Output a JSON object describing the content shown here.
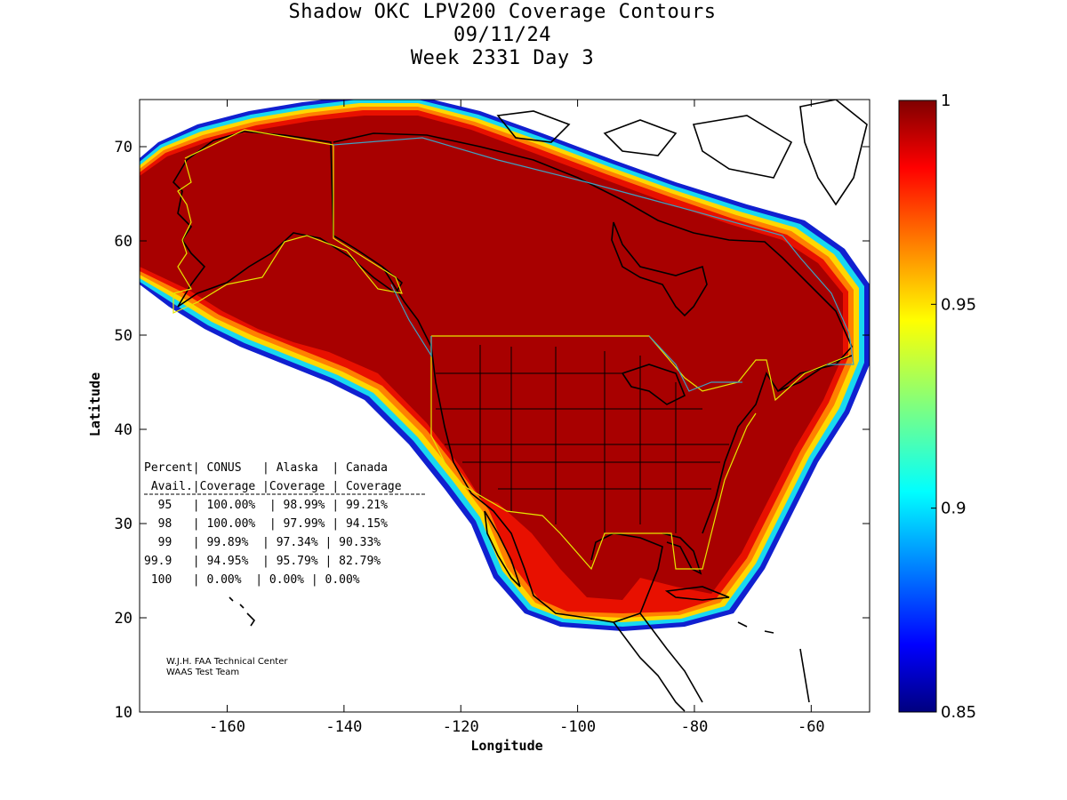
{
  "title": {
    "line1": "Shadow OKC LPV200 Coverage Contours",
    "line2": "09/11/24",
    "line3": "Week 2331 Day 3"
  },
  "axes": {
    "xlabel": "Longitude",
    "ylabel": "Latitude",
    "xlim": [
      -175,
      -50
    ],
    "ylim": [
      10,
      75
    ],
    "xticks": [
      -160,
      -140,
      -120,
      -100,
      -80,
      -60
    ],
    "yticks": [
      10,
      20,
      30,
      40,
      50,
      60,
      70
    ]
  },
  "colorbar": {
    "range": [
      0.85,
      1
    ],
    "ticks": [
      "1",
      "0.95",
      "0.9",
      "0.85"
    ],
    "tick_values": [
      1,
      0.95,
      0.9,
      0.85
    ]
  },
  "table": {
    "header1": "Percent| CONUS   | Alaska  | Canada",
    "header2": " Avail.|Coverage |Coverage | Coverage",
    "rows": [
      "  95   | 100.00%  | 98.99% | 99.21%",
      "  98   | 100.00%  | 97.99% | 94.15%",
      "  99   | 99.89%  | 97.34% | 90.33%",
      "99.9   | 94.95%  | 95.79% | 82.79%",
      " 100   | 0.00%  | 0.00% | 0.00%"
    ]
  },
  "credit": {
    "line1": "W.J.H. FAA Technical Center",
    "line2": "WAAS Test Team"
  },
  "colors": {
    "coverage_core": "#a80000",
    "boundary_yellow": "#e6e600",
    "boundary_cyan": "#40a0c0"
  }
}
